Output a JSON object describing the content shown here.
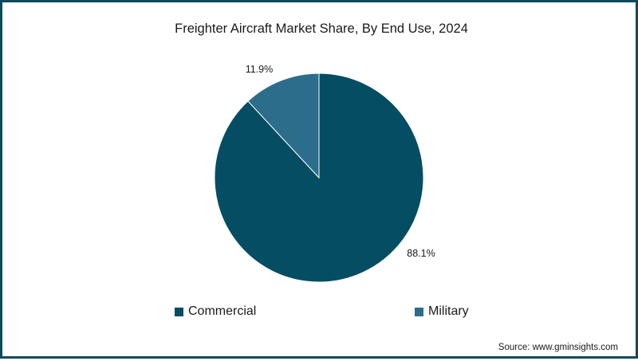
{
  "chart_data": {
    "type": "pie",
    "title": "Freighter Aircraft Market Share, By End Use, 2024",
    "categories": [
      "Commercial",
      "Military"
    ],
    "values": [
      88.1,
      11.9
    ],
    "labels": [
      "88.1%",
      "11.9%"
    ],
    "colors": [
      "#044d62",
      "#2c6d8c"
    ],
    "legend": {
      "position": "bottom",
      "items": [
        "Commercial",
        "Military"
      ]
    }
  },
  "source": "Source: www.gminsights.com",
  "border_color": "#0d4a5e"
}
